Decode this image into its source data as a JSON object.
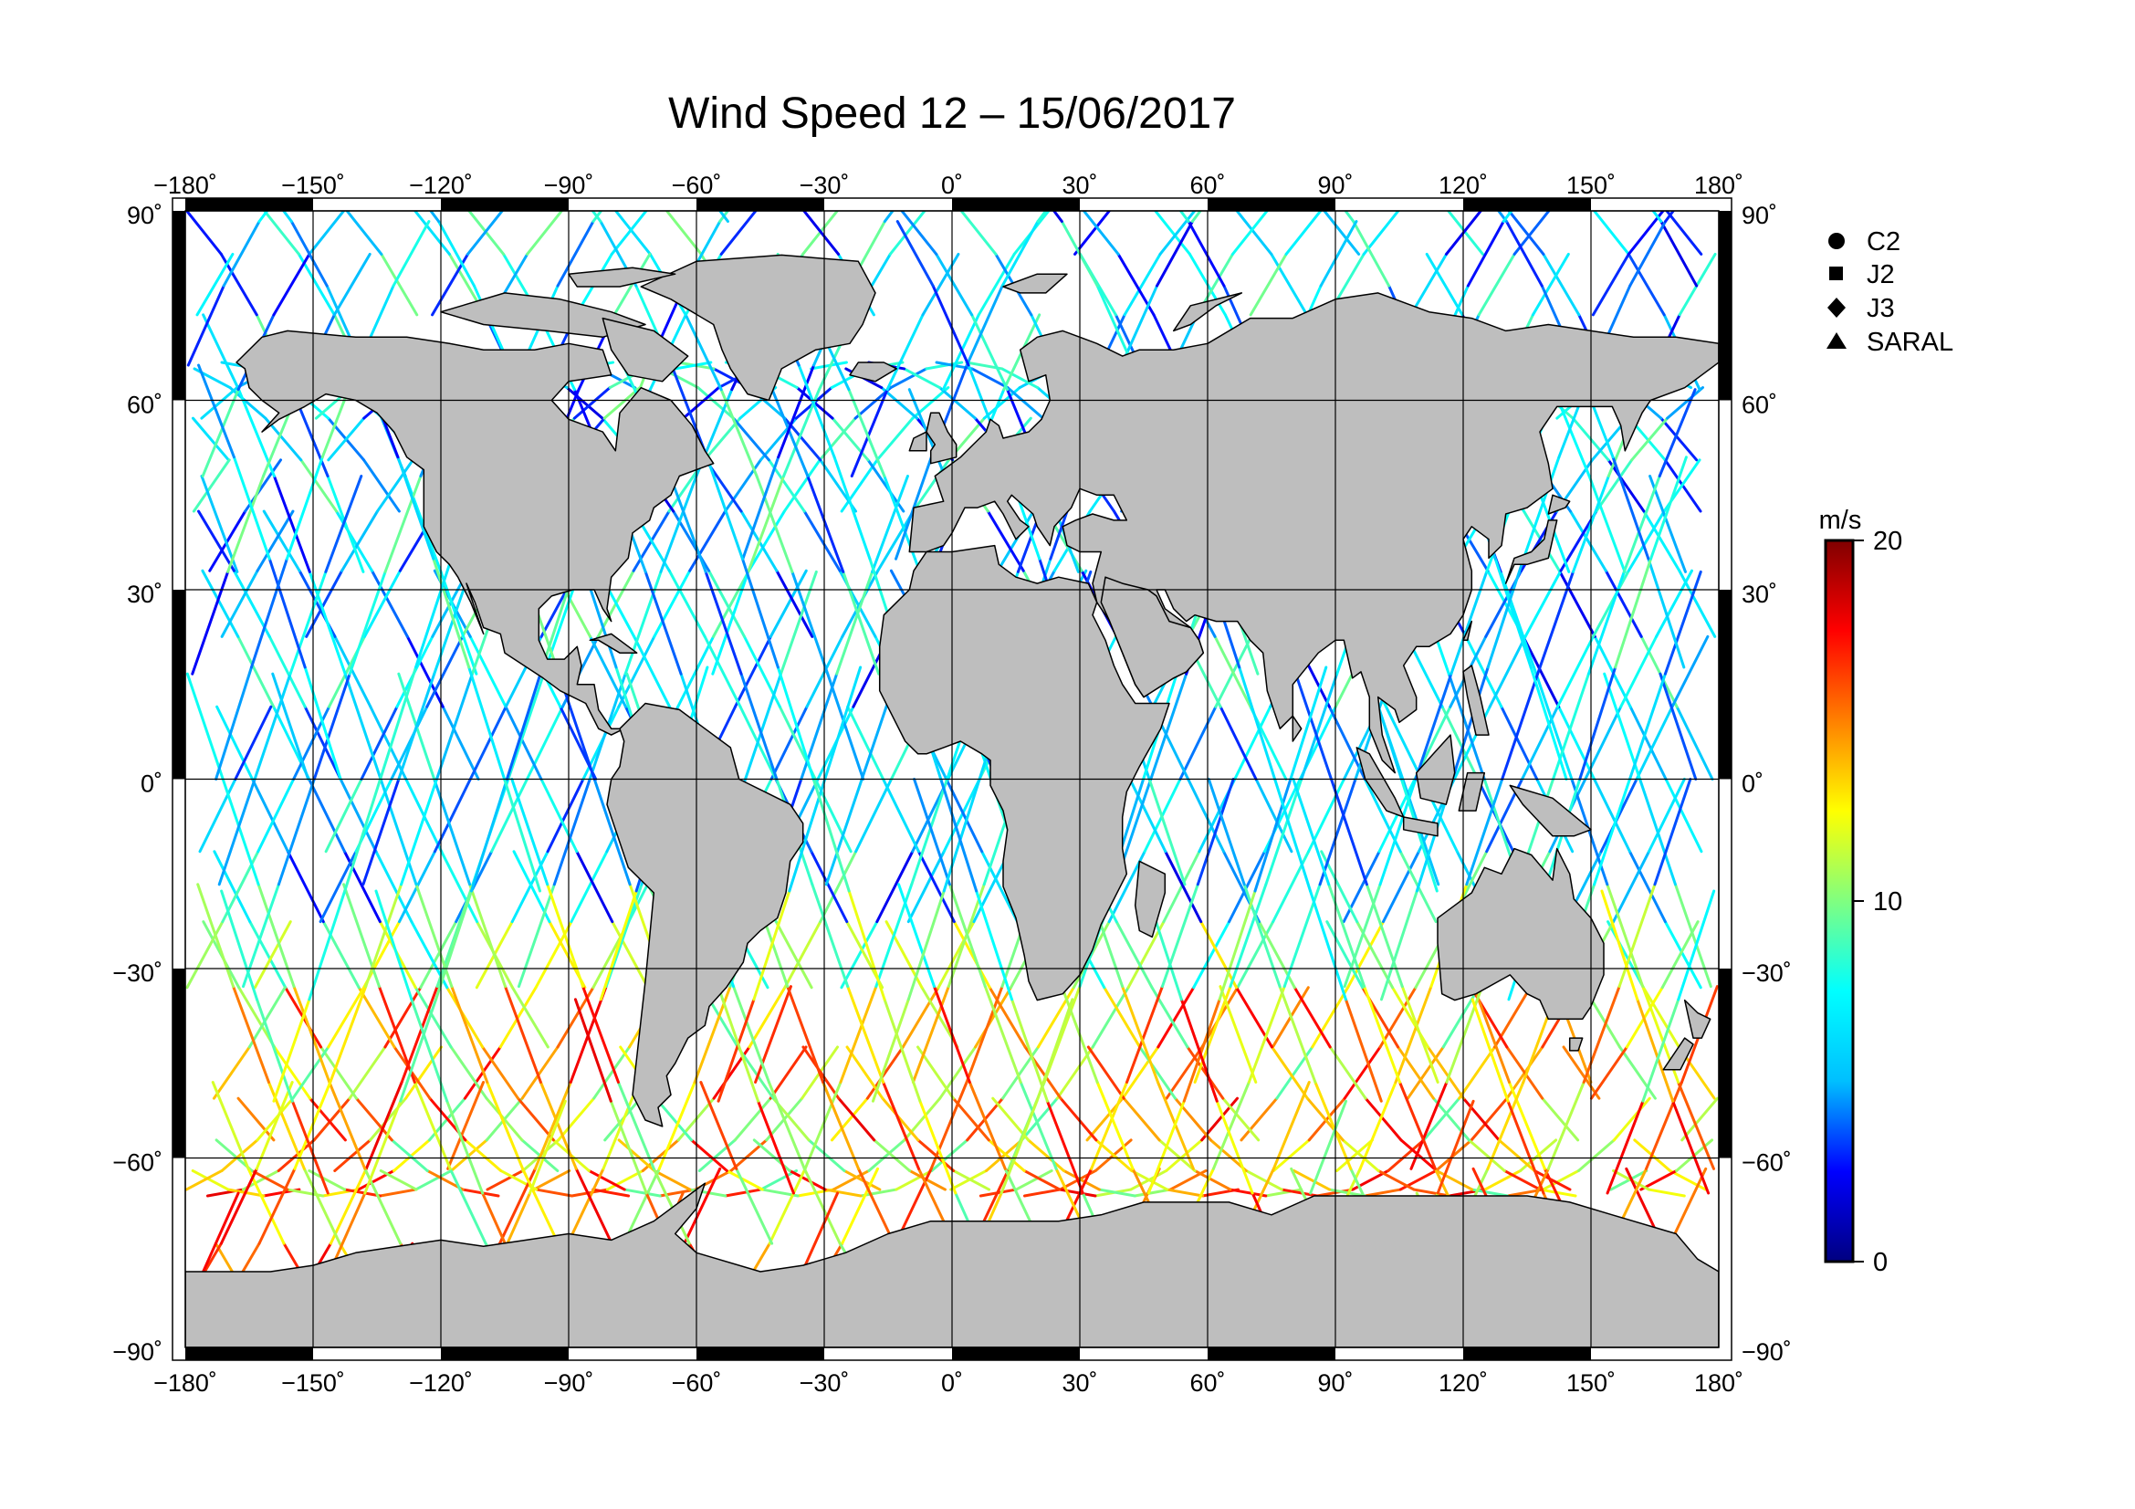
{
  "title": "Wind Speed 12 – 15/06/2017",
  "map": {
    "lon_range": [
      -180,
      180
    ],
    "lat_range": [
      -90,
      90
    ],
    "projection": "equirectangular",
    "land_color": "#bebebe",
    "ocean_color": "#ffffff",
    "grid": true,
    "lon_ticks": [
      "−180˚",
      "−150˚",
      "−120˚",
      "−90˚",
      "−60˚",
      "−30˚",
      "0˚",
      "30˚",
      "60˚",
      "90˚",
      "120˚",
      "150˚",
      "180˚"
    ],
    "lat_ticks": [
      "90˚",
      "60˚",
      "30˚",
      "0˚",
      "−30˚",
      "−60˚",
      "−90˚"
    ],
    "lat_tick_values": [
      90,
      60,
      30,
      0,
      -30,
      -60,
      -90
    ],
    "lon_tick_values": [
      -180,
      -150,
      -120,
      -90,
      -60,
      -30,
      0,
      30,
      60,
      90,
      120,
      150,
      180
    ]
  },
  "legend": {
    "placement": "top-right",
    "items": [
      {
        "label": "C2",
        "marker": "circle-icon"
      },
      {
        "label": "J2",
        "marker": "square-icon"
      },
      {
        "label": "J3",
        "marker": "diamond-icon"
      },
      {
        "label": "SARAL",
        "marker": "triangle-icon"
      }
    ]
  },
  "colorbar": {
    "unit": "m/s",
    "min": 0,
    "max": 20,
    "tick_labels": [
      "20",
      "10",
      "0"
    ],
    "tick_values": [
      20,
      10,
      0
    ],
    "colors": [
      "#000080",
      "#0000ff",
      "#00bfff",
      "#00ffff",
      "#80ff80",
      "#ffff00",
      "#ff8000",
      "#ff0000",
      "#800000"
    ]
  },
  "tracks": {
    "description_free": true,
    "speed_range": [
      0,
      20
    ]
  }
}
